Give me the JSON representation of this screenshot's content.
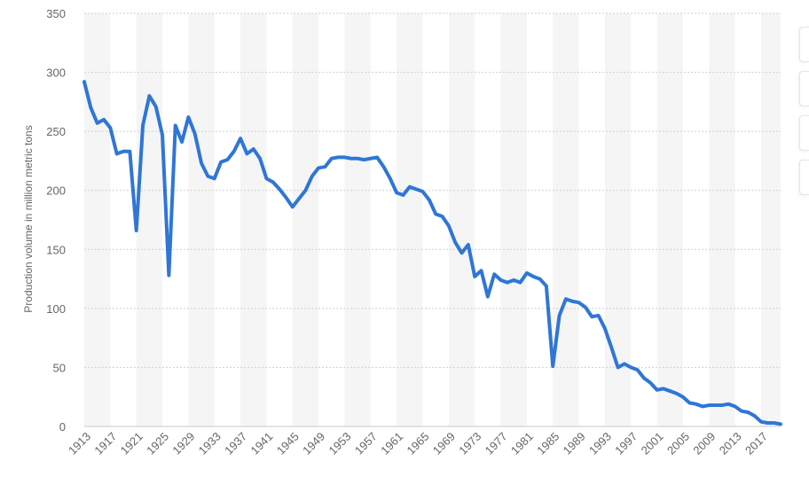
{
  "chart_data": {
    "type": "line",
    "title": "",
    "ylabel": "Production volume in million metric tons",
    "xlabel": "",
    "ylim": [
      0,
      350
    ],
    "yticks": [
      "0",
      "50",
      "100",
      "150",
      "200",
      "250",
      "300",
      "350"
    ],
    "xticks": [
      "1913",
      "1917",
      "1921",
      "1925",
      "1929",
      "1933",
      "1937",
      "1941",
      "1945",
      "1949",
      "1953",
      "1957",
      "1961",
      "1965",
      "1969",
      "1973",
      "1977",
      "1981",
      "1985",
      "1989",
      "1993",
      "1997",
      "2001",
      "2005",
      "2009",
      "2013",
      "2017"
    ],
    "grid": true,
    "color": "#2f76d6",
    "series": [
      {
        "x": [
          1913,
          1914,
          1915,
          1916,
          1917,
          1918,
          1919,
          1920,
          1921,
          1922,
          1923,
          1924,
          1925,
          1926,
          1927,
          1928,
          1929,
          1930,
          1931,
          1932,
          1933,
          1934,
          1935,
          1936,
          1937,
          1938,
          1939,
          1940,
          1941,
          1942,
          1943,
          1944,
          1945,
          1946,
          1947,
          1948,
          1949,
          1950,
          1951,
          1952,
          1953,
          1954,
          1955,
          1956,
          1957,
          1958,
          1959,
          1960,
          1961,
          1962,
          1963,
          1964,
          1965,
          1966,
          1967,
          1968,
          1969,
          1970,
          1971,
          1972,
          1973,
          1974,
          1975,
          1976,
          1977,
          1978,
          1979,
          1980,
          1981,
          1982,
          1983,
          1984,
          1985,
          1986,
          1987,
          1988,
          1989,
          1990,
          1991,
          1992,
          1993,
          1994,
          1995,
          1996,
          1997,
          1998,
          1999,
          2000,
          2001,
          2002,
          2003,
          2004,
          2005,
          2006,
          2007,
          2008,
          2009,
          2010,
          2011,
          2012,
          2013,
          2014,
          2015,
          2016,
          2017,
          2018,
          2019,
          2020
        ],
        "y": [
          292,
          270,
          257,
          260,
          253,
          231,
          233,
          233,
          166,
          255,
          280,
          271,
          247,
          128,
          255,
          241,
          262,
          248,
          223,
          212,
          210,
          224,
          226,
          233,
          244,
          231,
          235,
          227,
          210,
          207,
          201,
          194,
          186,
          193,
          200,
          212,
          219,
          220,
          227,
          228,
          228,
          227,
          227,
          226,
          227,
          228,
          220,
          210,
          198,
          196,
          203,
          201,
          199,
          192,
          180,
          178,
          170,
          156,
          147,
          154,
          127,
          132,
          110,
          129,
          124,
          122,
          124,
          122,
          130,
          127,
          125,
          119,
          51,
          94,
          108,
          106,
          105,
          101,
          93,
          94,
          83,
          67,
          50,
          53,
          50,
          48,
          41,
          37,
          31,
          32,
          30,
          28,
          25,
          20,
          19,
          17,
          18,
          18,
          18,
          19,
          17,
          13,
          12,
          9,
          4,
          3,
          3,
          2
        ]
      }
    ]
  }
}
